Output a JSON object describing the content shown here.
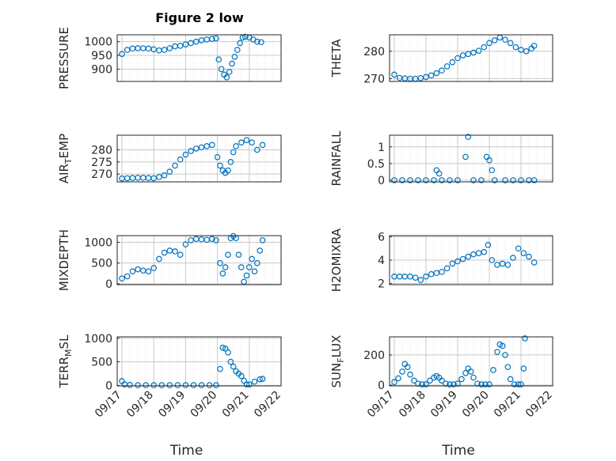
{
  "figure": {
    "title": "Figure 2 low",
    "marker_color": "#0072BD",
    "axis_color": "#262626",
    "grid_color": "#c8c8c8"
  },
  "chart_data": [
    {
      "type": "scatter",
      "ylabel": "PRESSURE",
      "xlim": [
        "09/17",
        "09/22"
      ],
      "ylim": [
        855,
        1025
      ],
      "yticks": [
        "900",
        "950",
        "1000"
      ],
      "xticks": [],
      "xlabel": "",
      "x": [
        "09/17 00:00",
        "09/17 04:00",
        "09/17 08:00",
        "09/17 12:00",
        "09/17 16:00",
        "09/17 20:00",
        "09/18 00:00",
        "09/18 04:00",
        "09/18 08:00",
        "09/18 12:00",
        "09/18 16:00",
        "09/18 20:00",
        "09/19 00:00",
        "09/19 04:00",
        "09/19 08:00",
        "09/19 12:00",
        "09/19 16:00",
        "09/19 20:00",
        "09/19 23:00",
        "09/20 01:00",
        "09/20 03:00",
        "09/20 05:00",
        "09/20 07:00",
        "09/20 09:00",
        "09/20 11:00",
        "09/20 13:00",
        "09/20 15:00",
        "09/20 17:00",
        "09/20 19:00",
        "09/20 21:00",
        "09/21 00:00",
        "09/21 03:00",
        "09/21 06:00",
        "09/21 09:00"
      ],
      "y": [
        955,
        970,
        975,
        976,
        976,
        975,
        972,
        968,
        970,
        976,
        983,
        985,
        990,
        995,
        1000,
        1005,
        1008,
        1010,
        1012,
        935,
        900,
        880,
        870,
        890,
        920,
        945,
        970,
        995,
        1015,
        1018,
        1015,
        1008,
        1000,
        998
      ]
    },
    {
      "type": "scatter",
      "ylabel": "THETA",
      "xlim": [
        "09/17",
        "09/22"
      ],
      "ylim": [
        269,
        286
      ],
      "yticks": [
        "270",
        "280"
      ],
      "xticks": [],
      "xlabel": "",
      "x": [
        "09/17 00:00",
        "09/17 04:00",
        "09/17 08:00",
        "09/17 12:00",
        "09/17 16:00",
        "09/17 20:00",
        "09/18 00:00",
        "09/18 04:00",
        "09/18 08:00",
        "09/18 12:00",
        "09/18 16:00",
        "09/18 20:00",
        "09/19 00:00",
        "09/19 04:00",
        "09/19 08:00",
        "09/19 12:00",
        "09/19 16:00",
        "09/19 20:00",
        "09/20 00:00",
        "09/20 04:00",
        "09/20 08:00",
        "09/20 12:00",
        "09/20 16:00",
        "09/20 20:00",
        "09/21 00:00",
        "09/21 04:00",
        "09/21 08:00",
        "09/21 10:00"
      ],
      "y": [
        271.5,
        270.3,
        270.1,
        270.0,
        270.0,
        270.2,
        270.6,
        271.2,
        272.0,
        273.0,
        274.5,
        276.0,
        277.5,
        278.5,
        279.0,
        279.5,
        280.2,
        281.5,
        283.0,
        284.0,
        285.0,
        284.2,
        283.0,
        281.5,
        280.5,
        280.0,
        281.0,
        282.0
      ]
    },
    {
      "type": "scatter",
      "ylabel": "AIR",
      "ylabel_sub": "T",
      "ylabel_rest": "EMP",
      "xlim": [
        "09/17",
        "09/22"
      ],
      "ylim": [
        266.8,
        286
      ],
      "yticks": [
        "270",
        "275",
        "280"
      ],
      "xticks": [],
      "xlabel": "",
      "x": [
        "09/17 00:00",
        "09/17 04:00",
        "09/17 08:00",
        "09/17 12:00",
        "09/17 16:00",
        "09/17 20:00",
        "09/18 00:00",
        "09/18 04:00",
        "09/18 08:00",
        "09/18 12:00",
        "09/18 16:00",
        "09/18 20:00",
        "09/19 00:00",
        "09/19 04:00",
        "09/19 08:00",
        "09/19 12:00",
        "09/19 16:00",
        "09/19 20:00",
        "09/20 00:00",
        "09/20 02:00",
        "09/20 04:00",
        "09/20 06:00",
        "09/20 08:00",
        "09/20 10:00",
        "09/20 12:00",
        "09/20 14:00",
        "09/20 18:00",
        "09/20 22:00",
        "09/21 02:00",
        "09/21 06:00",
        "09/21 10:00"
      ],
      "y": [
        268.2,
        268.3,
        268.4,
        268.5,
        268.5,
        268.4,
        268.3,
        268.8,
        269.5,
        271.0,
        273.5,
        276.0,
        278.0,
        279.5,
        280.5,
        281.0,
        281.5,
        282.0,
        277.0,
        273.5,
        271.5,
        270.5,
        271.5,
        275.0,
        279.0,
        281.5,
        283.0,
        284.0,
        283.0,
        280.0,
        282.0
      ]
    },
    {
      "type": "scatter",
      "ylabel": "RAINFALL",
      "xlim": [
        "09/17",
        "09/22"
      ],
      "ylim": [
        -0.05,
        1.35
      ],
      "yticks": [
        "0",
        "0.5",
        "1"
      ],
      "xticks": [],
      "xlabel": "",
      "x": [
        "09/17 00:00",
        "09/17 06:00",
        "09/17 12:00",
        "09/17 18:00",
        "09/18 00:00",
        "09/18 06:00",
        "09/18 08:00",
        "09/18 10:00",
        "09/18 12:00",
        "09/18 18:00",
        "09/19 00:00",
        "09/19 06:00",
        "09/19 08:00",
        "09/19 12:00",
        "09/19 18:00",
        "09/19 22:00",
        "09/20 00:00",
        "09/20 02:00",
        "09/20 04:00",
        "09/20 12:00",
        "09/20 18:00",
        "09/21 00:00",
        "09/21 06:00",
        "09/21 10:00"
      ],
      "y": [
        0,
        0,
        0,
        0,
        0,
        0,
        0.3,
        0.2,
        0,
        0,
        0,
        0.7,
        1.3,
        0,
        0,
        0.7,
        0.6,
        0.3,
        0,
        0,
        0,
        0,
        0,
        0
      ]
    },
    {
      "type": "scatter",
      "ylabel": "MIXDEPTH",
      "xlim": [
        "09/17",
        "09/22"
      ],
      "ylim": [
        -20,
        1160
      ],
      "yticks": [
        "0",
        "500",
        "1000"
      ],
      "xticks": [],
      "xlabel": "",
      "x": [
        "09/17 00:00",
        "09/17 04:00",
        "09/17 08:00",
        "09/17 12:00",
        "09/17 16:00",
        "09/17 20:00",
        "09/18 00:00",
        "09/18 04:00",
        "09/18 08:00",
        "09/18 12:00",
        "09/18 16:00",
        "09/18 20:00",
        "09/19 00:00",
        "09/19 04:00",
        "09/19 08:00",
        "09/19 12:00",
        "09/19 16:00",
        "09/19 20:00",
        "09/19 23:00",
        "09/20 02:00",
        "09/20 04:00",
        "09/20 06:00",
        "09/20 08:00",
        "09/20 10:00",
        "09/20 12:00",
        "09/20 14:00",
        "09/20 16:00",
        "09/20 18:00",
        "09/20 20:00",
        "09/20 22:00",
        "09/21 00:00",
        "09/21 02:00",
        "09/21 04:00",
        "09/21 06:00",
        "09/21 08:00",
        "09/21 10:00"
      ],
      "y": [
        130,
        180,
        300,
        350,
        320,
        300,
        380,
        600,
        750,
        800,
        780,
        700,
        950,
        1050,
        1080,
        1070,
        1060,
        1080,
        1050,
        500,
        250,
        400,
        700,
        1100,
        1150,
        1100,
        700,
        400,
        50,
        200,
        400,
        600,
        300,
        500,
        800,
        1050
      ]
    },
    {
      "type": "scatter",
      "ylabel": "H2OMIXRA",
      "xlim": [
        "09/17",
        "09/22"
      ],
      "ylim": [
        1.9,
        6.1
      ],
      "yticks": [
        "2",
        "4",
        "6"
      ],
      "xticks": [],
      "xlabel": "",
      "x": [
        "09/17 00:00",
        "09/17 04:00",
        "09/17 08:00",
        "09/17 12:00",
        "09/17 16:00",
        "09/17 20:00",
        "09/18 00:00",
        "09/18 04:00",
        "09/18 08:00",
        "09/18 12:00",
        "09/18 16:00",
        "09/18 20:00",
        "09/19 00:00",
        "09/19 04:00",
        "09/19 08:00",
        "09/19 12:00",
        "09/19 16:00",
        "09/19 20:00",
        "09/19 23:00",
        "09/20 02:00",
        "09/20 06:00",
        "09/20 10:00",
        "09/20 14:00",
        "09/20 18:00",
        "09/20 22:00",
        "09/21 02:00",
        "09/21 06:00",
        "09/21 10:00"
      ],
      "y": [
        2.6,
        2.6,
        2.6,
        2.6,
        2.5,
        2.3,
        2.6,
        2.8,
        2.9,
        3.0,
        3.3,
        3.7,
        3.9,
        4.1,
        4.3,
        4.5,
        4.6,
        4.7,
        5.3,
        4.0,
        3.6,
        3.7,
        3.6,
        4.2,
        5.0,
        4.6,
        4.3,
        3.8
      ]
    },
    {
      "type": "scatter",
      "ylabel": "TERR",
      "ylabel_sub": "M",
      "ylabel_rest": "SL",
      "xlim": [
        "09/17",
        "09/22"
      ],
      "ylim": [
        -10,
        1030
      ],
      "yticks": [
        "0",
        "500",
        "1000"
      ],
      "xticks": [
        "09/17",
        "09/18",
        "09/19",
        "09/20",
        "09/21",
        "09/22"
      ],
      "xlabel": "Time",
      "x": [
        "09/17 00:00",
        "09/17 02:00",
        "09/17 06:00",
        "09/17 12:00",
        "09/17 18:00",
        "09/18 00:00",
        "09/18 06:00",
        "09/18 12:00",
        "09/18 18:00",
        "09/19 00:00",
        "09/19 06:00",
        "09/19 12:00",
        "09/19 18:00",
        "09/19 23:00",
        "09/20 02:00",
        "09/20 04:00",
        "09/20 06:00",
        "09/20 08:00",
        "09/20 10:00",
        "09/20 12:00",
        "09/20 14:00",
        "09/20 16:00",
        "09/20 18:00",
        "09/20 20:00",
        "09/20 22:00",
        "09/21 00:00",
        "09/21 04:00",
        "09/21 08:00",
        "09/21 10:00"
      ],
      "y": [
        90,
        20,
        10,
        5,
        5,
        5,
        5,
        5,
        5,
        5,
        5,
        5,
        5,
        5,
        350,
        800,
        780,
        700,
        500,
        400,
        300,
        250,
        200,
        100,
        20,
        20,
        80,
        130,
        140
      ]
    },
    {
      "type": "scatter",
      "ylabel": "SUN",
      "ylabel_sub": "F",
      "ylabel_rest": "LUX",
      "xlim": [
        "09/17",
        "09/22"
      ],
      "ylim": [
        -5,
        320
      ],
      "yticks": [
        "0",
        "200"
      ],
      "xticks": [
        "09/17",
        "09/18",
        "09/19",
        "09/20",
        "09/21",
        "09/22"
      ],
      "xlabel": "Time",
      "x": [
        "09/17 00:00",
        "09/17 03:00",
        "09/17 06:00",
        "09/17 08:00",
        "09/17 10:00",
        "09/17 12:00",
        "09/17 15:00",
        "09/17 18:00",
        "09/17 21:00",
        "09/18 00:00",
        "09/18 03:00",
        "09/18 06:00",
        "09/18 08:00",
        "09/18 10:00",
        "09/18 12:00",
        "09/18 15:00",
        "09/18 18:00",
        "09/18 21:00",
        "09/19 00:00",
        "09/19 03:00",
        "09/19 06:00",
        "09/19 08:00",
        "09/19 10:00",
        "09/19 12:00",
        "09/19 15:00",
        "09/19 18:00",
        "09/19 21:00",
        "09/20 00:00",
        "09/20 03:00",
        "09/20 06:00",
        "09/20 08:00",
        "09/20 10:00",
        "09/20 12:00",
        "09/20 14:00",
        "09/20 16:00",
        "09/20 19:00",
        "09/20 22:00",
        "09/21 00:00",
        "09/21 02:00",
        "09/21 03:00"
      ],
      "y": [
        20,
        45,
        90,
        140,
        120,
        70,
        30,
        10,
        5,
        5,
        30,
        50,
        60,
        50,
        30,
        10,
        5,
        5,
        10,
        40,
        80,
        110,
        90,
        50,
        10,
        5,
        5,
        5,
        100,
        220,
        270,
        260,
        200,
        120,
        40,
        5,
        5,
        5,
        110,
        310
      ]
    }
  ]
}
